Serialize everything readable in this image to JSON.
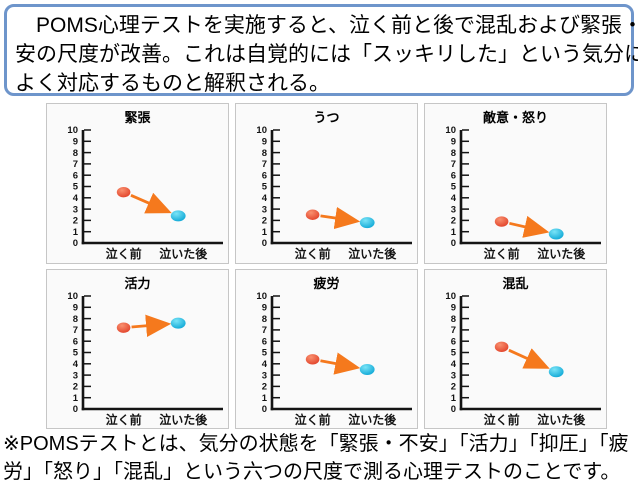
{
  "header": {
    "lines": [
      "　POMS心理テストを実施すると、泣く前と後で混乱および緊張・不",
      "安の尺度が改善。これは自覚的には「スッキリした」という気分に",
      "よく対応するものと解釈される。"
    ]
  },
  "footer": {
    "lines": [
      "※POMSテストとは、気分の状態を「緊張・不安」「活力」「抑圧」「疲",
      "労」「怒り」「混乱」という六つの尺度で測る心理テストのことです。"
    ]
  },
  "colors": {
    "text": "#000000",
    "box_border": "#6e95cb",
    "panel_border": "#c6c6c6",
    "panel_bg": "#fafafa",
    "axis": "#141414",
    "arrow": "#f5791d",
    "before_dot": "#e2432a",
    "before_dot_hi": "#f9906f",
    "after_dot": "#0fa8d6",
    "after_dot_hi": "#7ae4f7"
  },
  "chart_data": [
    {
      "type": "scatter",
      "title": "緊張",
      "categories": [
        "泣く前",
        "泣いた後"
      ],
      "values": [
        4.5,
        2.4
      ],
      "ylim": [
        0,
        10
      ],
      "ytick_step": 1,
      "series": [
        {
          "name": "泣く前",
          "color_key": "before_dot"
        },
        {
          "name": "泣いた後",
          "color_key": "after_dot"
        }
      ],
      "annotation": "orange arrow from before to after"
    },
    {
      "type": "scatter",
      "title": "うつ",
      "categories": [
        "泣く前",
        "泣いた後"
      ],
      "values": [
        2.5,
        1.8
      ],
      "ylim": [
        0,
        10
      ],
      "ytick_step": 1,
      "series": [
        {
          "name": "泣く前",
          "color_key": "before_dot"
        },
        {
          "name": "泣いた後",
          "color_key": "after_dot"
        }
      ],
      "annotation": "orange arrow from before to after"
    },
    {
      "type": "scatter",
      "title": "敵意・怒り",
      "categories": [
        "泣く前",
        "泣いた後"
      ],
      "values": [
        1.9,
        0.8
      ],
      "ylim": [
        0,
        10
      ],
      "ytick_step": 1,
      "series": [
        {
          "name": "泣く前",
          "color_key": "before_dot"
        },
        {
          "name": "泣いた後",
          "color_key": "after_dot"
        }
      ],
      "annotation": "orange arrow from before to after"
    },
    {
      "type": "scatter",
      "title": "活力",
      "categories": [
        "泣く前",
        "泣いた後"
      ],
      "values": [
        7.2,
        7.6
      ],
      "ylim": [
        0,
        10
      ],
      "ytick_step": 1,
      "series": [
        {
          "name": "泣く前",
          "color_key": "before_dot"
        },
        {
          "name": "泣いた後",
          "color_key": "after_dot"
        }
      ],
      "annotation": "orange arrow from before to after"
    },
    {
      "type": "scatter",
      "title": "疲労",
      "categories": [
        "泣く前",
        "泣いた後"
      ],
      "values": [
        4.4,
        3.5
      ],
      "ylim": [
        0,
        10
      ],
      "ytick_step": 1,
      "series": [
        {
          "name": "泣く前",
          "color_key": "before_dot"
        },
        {
          "name": "泣いた後",
          "color_key": "after_dot"
        }
      ],
      "annotation": "orange arrow from before to after"
    },
    {
      "type": "scatter",
      "title": "混乱",
      "categories": [
        "泣く前",
        "泣いた後"
      ],
      "values": [
        5.5,
        3.3
      ],
      "ylim": [
        0,
        10
      ],
      "ytick_step": 1,
      "series": [
        {
          "name": "泣く前",
          "color_key": "before_dot"
        },
        {
          "name": "泣いた後",
          "color_key": "after_dot"
        }
      ],
      "annotation": "orange arrow from before to after"
    }
  ]
}
